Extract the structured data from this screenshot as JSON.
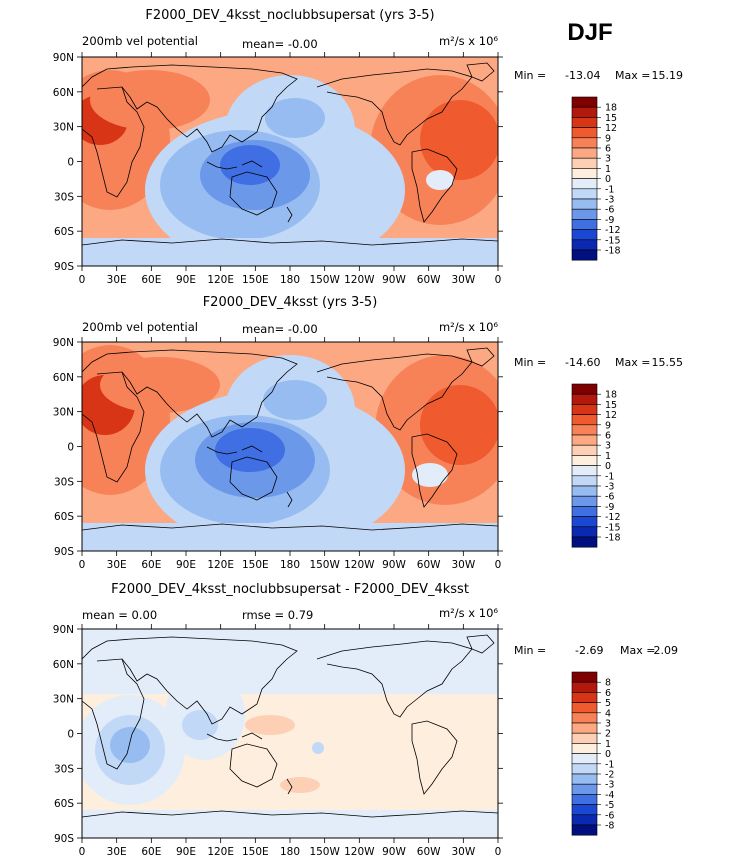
{
  "season": "DJF",
  "panels": [
    {
      "title": "F2000_DEV_4ksst_noclubbsupersat (yrs 3-5)",
      "left_label": "200mb vel potential",
      "center_label": "mean=   -0.00",
      "units": "m²/s x 10⁶",
      "stats": {
        "min_label": "Min =",
        "min": "-13.04",
        "max_label": "Max =",
        "max": "15.19"
      },
      "colorbar": {
        "labels": [
          "18",
          "15",
          "12",
          "9",
          "6",
          "3",
          "1",
          "0",
          "-1",
          "-3",
          "-6",
          "-9",
          "-12",
          "-15",
          "-18"
        ],
        "colors": [
          "#7f0000",
          "#b2180c",
          "#d73515",
          "#ef5a2e",
          "#f88258",
          "#fba883",
          "#fdd0b5",
          "#fdeede",
          "#e3edfa",
          "#c1d8f6",
          "#96bcf1",
          "#6c98ea",
          "#3f6fe3",
          "#1a47d4",
          "#0b28b0",
          "#010f80"
        ]
      }
    },
    {
      "title": "F2000_DEV_4ksst (yrs 3-5)",
      "left_label": "200mb vel potential",
      "center_label": "mean=   -0.00",
      "units": "m²/s x 10⁶",
      "stats": {
        "min_label": "Min =",
        "min": "-14.60",
        "max_label": "Max =",
        "max": "15.55"
      },
      "colorbar": {
        "labels": [
          "18",
          "15",
          "12",
          "9",
          "6",
          "3",
          "1",
          "0",
          "-1",
          "-3",
          "-6",
          "-9",
          "-12",
          "-15",
          "-18"
        ],
        "colors": [
          "#7f0000",
          "#b2180c",
          "#d73515",
          "#ef5a2e",
          "#f88258",
          "#fba883",
          "#fdd0b5",
          "#fdeede",
          "#e3edfa",
          "#c1d8f6",
          "#96bcf1",
          "#6c98ea",
          "#3f6fe3",
          "#1a47d4",
          "#0b28b0",
          "#010f80"
        ]
      }
    },
    {
      "title": "F2000_DEV_4ksst_noclubbsupersat - F2000_DEV_4ksst",
      "left_label": "mean =     0.00",
      "center_label": "rmse =     0.79",
      "units": "m²/s x 10⁶",
      "stats": {
        "min_label": "Min =",
        "min": "-2.69",
        "max_label": "Max =",
        "max": "2.09"
      },
      "colorbar": {
        "labels": [
          "8",
          "6",
          "5",
          "4",
          "3",
          "2",
          "1",
          "0",
          "-1",
          "-2",
          "-3",
          "-4",
          "-5",
          "-6",
          "-8"
        ],
        "colors": [
          "#7f0000",
          "#b2180c",
          "#d73515",
          "#ef5a2e",
          "#f88258",
          "#fba883",
          "#fdd0b5",
          "#fdeede",
          "#e3edfa",
          "#c1d8f6",
          "#96bcf1",
          "#6c98ea",
          "#3f6fe3",
          "#1a47d4",
          "#0b28b0",
          "#010f80"
        ]
      }
    }
  ],
  "chart_data": [
    {
      "type": "heatmap",
      "title": "F2000_DEV_4ksst_noclubbsupersat (yrs 3-5)",
      "variable": "200mb vel potential",
      "units": "m²/s x 10⁶",
      "mean": -0.0,
      "min": -13.04,
      "max": 15.19,
      "x_ticks": [
        "0",
        "30E",
        "60E",
        "90E",
        "120E",
        "150E",
        "180",
        "150W",
        "120W",
        "90W",
        "60W",
        "30W",
        "0"
      ],
      "y_ticks": [
        "90N",
        "60N",
        "30N",
        "0",
        "30S",
        "60S",
        "90S"
      ],
      "xlim": [
        0,
        360
      ],
      "ylim": [
        -90,
        90
      ],
      "contour_levels": [
        -18,
        -15,
        -12,
        -9,
        -6,
        -3,
        -1,
        0,
        1,
        3,
        6,
        9,
        12,
        15,
        18
      ],
      "features": [
        {
          "lon": 50,
          "lat": 25,
          "value": 15
        },
        {
          "lon": 150,
          "lat": -10,
          "value": -12
        },
        {
          "lon": 150,
          "lat": 40,
          "value": -5
        },
        {
          "lon": 330,
          "lat": 10,
          "value": 10
        },
        {
          "lon": 310,
          "lat": -30,
          "value": 0
        }
      ]
    },
    {
      "type": "heatmap",
      "title": "F2000_DEV_4ksst (yrs 3-5)",
      "variable": "200mb vel potential",
      "units": "m²/s x 10⁶",
      "mean": -0.0,
      "min": -14.6,
      "max": 15.55,
      "x_ticks": [
        "0",
        "30E",
        "60E",
        "90E",
        "120E",
        "150E",
        "180",
        "150W",
        "120W",
        "90W",
        "60W",
        "30W",
        "0"
      ],
      "y_ticks": [
        "90N",
        "60N",
        "30N",
        "0",
        "30S",
        "60S",
        "90S"
      ],
      "xlim": [
        0,
        360
      ],
      "ylim": [
        -90,
        90
      ],
      "contour_levels": [
        -18,
        -15,
        -12,
        -9,
        -6,
        -3,
        -1,
        0,
        1,
        3,
        6,
        9,
        12,
        15,
        18
      ],
      "features": [
        {
          "lon": 40,
          "lat": 20,
          "value": 15
        },
        {
          "lon": 150,
          "lat": -10,
          "value": -14
        },
        {
          "lon": 150,
          "lat": 40,
          "value": -6
        },
        {
          "lon": 330,
          "lat": 15,
          "value": 12
        },
        {
          "lon": 310,
          "lat": -30,
          "value": -2
        }
      ]
    },
    {
      "type": "heatmap",
      "title": "F2000_DEV_4ksst_noclubbsupersat - F2000_DEV_4ksst",
      "units": "m²/s x 10⁶",
      "mean": 0.0,
      "rmse": 0.79,
      "min": -2.69,
      "max": 2.09,
      "x_ticks": [
        "0",
        "30E",
        "60E",
        "90E",
        "120E",
        "150E",
        "180",
        "150W",
        "120W",
        "90W",
        "60W",
        "30W",
        "0"
      ],
      "y_ticks": [
        "90N",
        "60N",
        "30N",
        "0",
        "30S",
        "60S",
        "90S"
      ],
      "xlim": [
        0,
        360
      ],
      "ylim": [
        -90,
        90
      ],
      "contour_levels": [
        -8,
        -6,
        -5,
        -4,
        -3,
        -2,
        -1,
        0,
        1,
        2,
        3,
        4,
        5,
        6,
        8
      ],
      "features": [
        {
          "lon": 30,
          "lat": -10,
          "value": -2
        },
        {
          "lon": 80,
          "lat": 15,
          "value": -2
        },
        {
          "lon": 170,
          "lat": 5,
          "value": 0.5
        },
        {
          "lon": 270,
          "lat": -30,
          "value": 0.5
        }
      ]
    }
  ]
}
